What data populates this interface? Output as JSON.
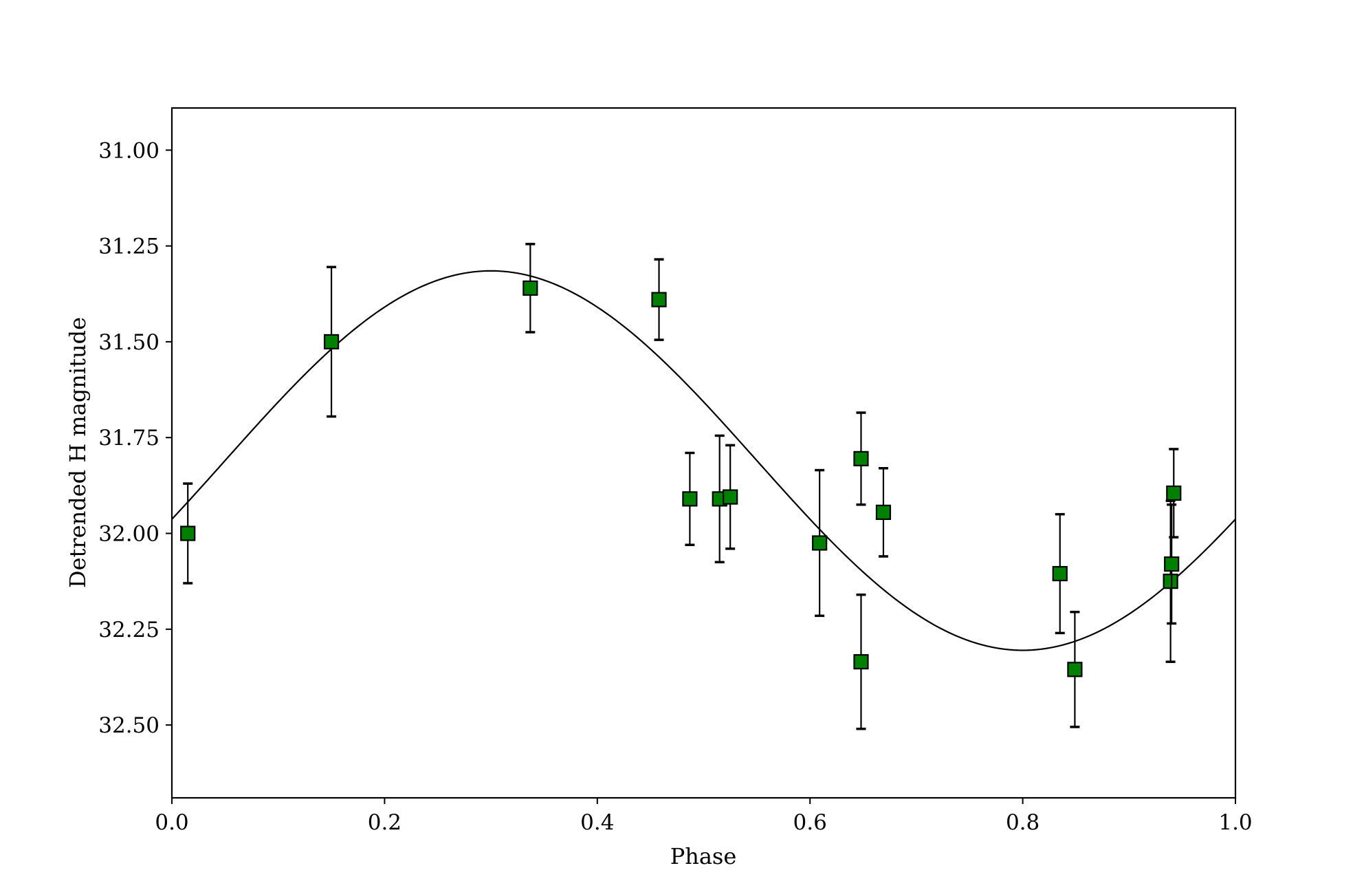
{
  "chart_data": {
    "type": "scatter",
    "title": "",
    "xlabel": "Phase",
    "ylabel": "Detrended H magnitude",
    "xlim": [
      0.0,
      1.0
    ],
    "ylim": [
      32.69,
      30.89
    ],
    "y_inverted": true,
    "grid": false,
    "x_ticks": [
      "0.0",
      "0.2",
      "0.4",
      "0.6",
      "0.8",
      "1.0"
    ],
    "y_ticks": [
      "31.00",
      "31.25",
      "31.50",
      "31.75",
      "32.00",
      "32.25",
      "32.50"
    ],
    "colors": {
      "marker_fill": "#008000",
      "marker_edge": "#000000",
      "curve": "#000000",
      "errorbar": "#000000"
    },
    "marker": "square",
    "series": [
      {
        "points": [
          {
            "x": 0.015,
            "y": 32.0,
            "yerr": 0.13
          },
          {
            "x": 0.15,
            "y": 31.5,
            "yerr": 0.195
          },
          {
            "x": 0.337,
            "y": 31.36,
            "yerr": 0.115
          },
          {
            "x": 0.458,
            "y": 31.39,
            "yerr": 0.105
          },
          {
            "x": 0.487,
            "y": 31.91,
            "yerr": 0.12
          },
          {
            "x": 0.515,
            "y": 31.91,
            "yerr": 0.165
          },
          {
            "x": 0.525,
            "y": 31.905,
            "yerr": 0.135
          },
          {
            "x": 0.609,
            "y": 32.025,
            "yerr": 0.19
          },
          {
            "x": 0.648,
            "y": 31.805,
            "yerr": 0.12
          },
          {
            "x": 0.648,
            "y": 32.335,
            "yerr": 0.175
          },
          {
            "x": 0.669,
            "y": 31.945,
            "yerr": 0.115
          },
          {
            "x": 0.835,
            "y": 32.105,
            "yerr": 0.155
          },
          {
            "x": 0.849,
            "y": 32.355,
            "yerr": 0.15
          },
          {
            "x": 0.939,
            "y": 32.125,
            "yerr": 0.21
          },
          {
            "x": 0.94,
            "y": 32.08,
            "yerr": 0.155
          },
          {
            "x": 0.942,
            "y": 31.895,
            "yerr": 0.115
          }
        ]
      }
    ],
    "fit": {
      "type": "sinusoid",
      "mean": 31.81,
      "amplitude": 0.495,
      "phase_of_minimum_magnitude": 0.3,
      "samples": 241
    }
  }
}
